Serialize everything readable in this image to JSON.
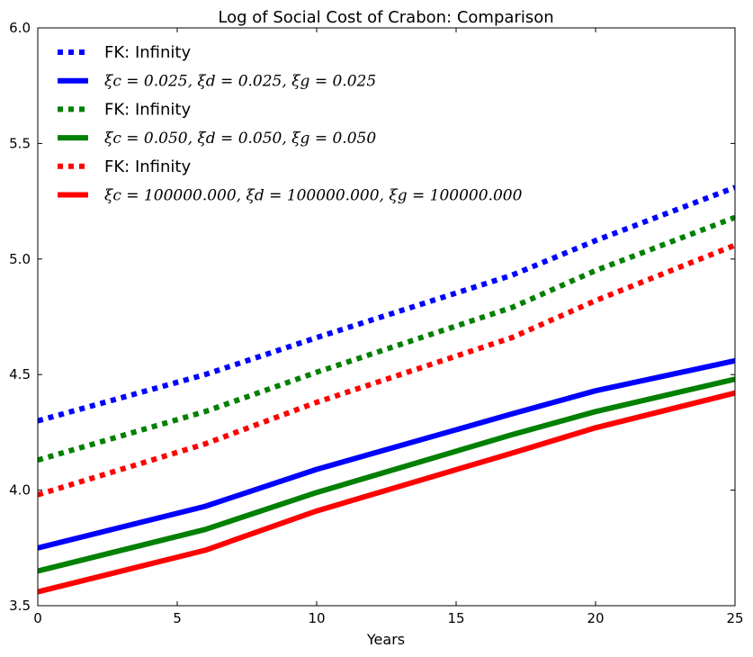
{
  "chart_data": {
    "type": "line",
    "title": "Log of Social Cost of Crabon: Comparison",
    "xlabel": "Years",
    "ylabel": "",
    "xlim": [
      0,
      25
    ],
    "ylim": [
      3.5,
      6.0
    ],
    "xticks": [
      0,
      5,
      10,
      15,
      20,
      25
    ],
    "xtick_labels": [
      "0",
      "5",
      "10",
      "15",
      "20",
      "25"
    ],
    "yticks": [
      3.5,
      4.0,
      4.5,
      5.0,
      5.5,
      6.0
    ],
    "ytick_labels": [
      "3.5",
      "4.0",
      "4.5",
      "5.0",
      "5.5",
      "6.0"
    ],
    "grid": false,
    "legend_position": "top-left",
    "series": [
      {
        "name": "FK: Infinity",
        "color": "#0000ff",
        "style": "dotted",
        "x": [
          0,
          6,
          10,
          17,
          20,
          25
        ],
        "y": [
          4.3,
          4.5,
          4.66,
          4.93,
          5.08,
          5.31
        ]
      },
      {
        "name": "ξc = 0.025, ξd = 0.025, ξg = 0.025",
        "color": "#0000ff",
        "style": "solid",
        "x": [
          0,
          6,
          10,
          17,
          20,
          25
        ],
        "y": [
          3.75,
          3.93,
          4.09,
          4.33,
          4.43,
          4.56
        ]
      },
      {
        "name": "FK: Infinity",
        "color": "#008000",
        "style": "dotted",
        "x": [
          0,
          6,
          10,
          17,
          20,
          25
        ],
        "y": [
          4.13,
          4.34,
          4.51,
          4.79,
          4.95,
          5.18
        ]
      },
      {
        "name": "ξc = 0.050, ξd = 0.050, ξg = 0.050",
        "color": "#008000",
        "style": "solid",
        "x": [
          0,
          6,
          10,
          17,
          20,
          25
        ],
        "y": [
          3.65,
          3.83,
          3.99,
          4.24,
          4.34,
          4.48
        ]
      },
      {
        "name": "FK: Infinity",
        "color": "#ff0000",
        "style": "dotted",
        "x": [
          0,
          6,
          10,
          17,
          20,
          25
        ],
        "y": [
          3.98,
          4.2,
          4.38,
          4.66,
          4.82,
          5.06
        ]
      },
      {
        "name": "ξc = 100000.000, ξd = 100000.000, ξg = 100000.000",
        "color": "#ff0000",
        "style": "solid",
        "x": [
          0,
          6,
          10,
          17,
          20,
          25
        ],
        "y": [
          3.56,
          3.74,
          3.91,
          4.16,
          4.27,
          4.42
        ]
      }
    ]
  }
}
